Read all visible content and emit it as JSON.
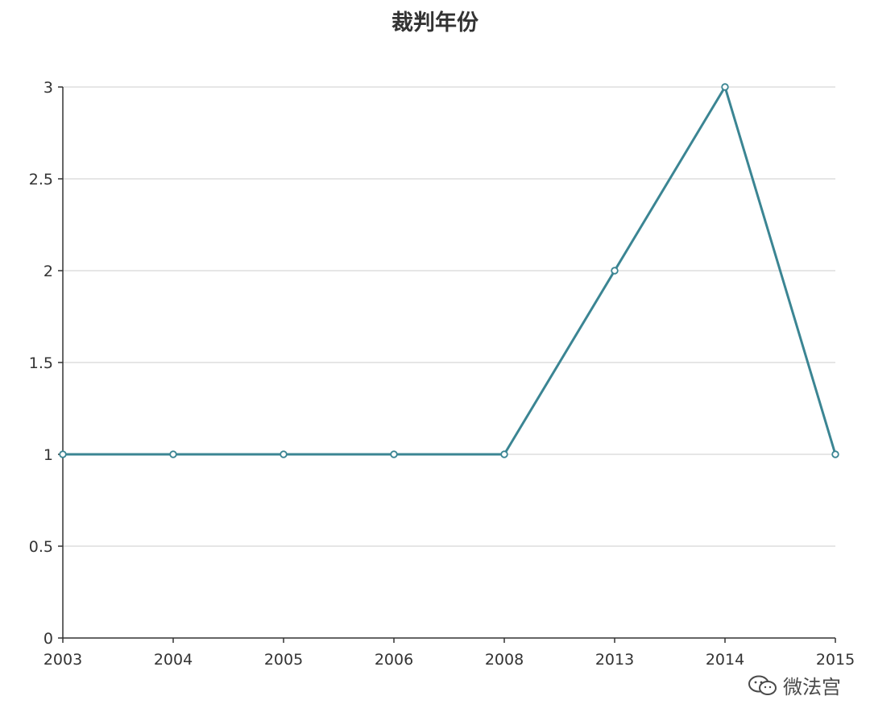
{
  "chart_data": {
    "type": "line",
    "title": "裁判年份",
    "xlabel": "",
    "ylabel": "",
    "categories": [
      "2003",
      "2004",
      "2005",
      "2006",
      "2008",
      "2013",
      "2014",
      "2015"
    ],
    "series": [
      {
        "values": [
          1,
          1,
          1,
          1,
          1,
          2,
          3,
          1
        ]
      }
    ],
    "ylim": [
      0,
      3
    ],
    "yticks": [
      "0",
      "0.5",
      "1",
      "1.5",
      "2",
      "2.5",
      "3"
    ],
    "grid": true,
    "colors": {
      "line": "#3b8593",
      "grid": "#cccccc",
      "axis": "#333333",
      "text": "#333333"
    }
  },
  "watermark": {
    "text": "微法宫",
    "icon": "wechat-icon"
  }
}
